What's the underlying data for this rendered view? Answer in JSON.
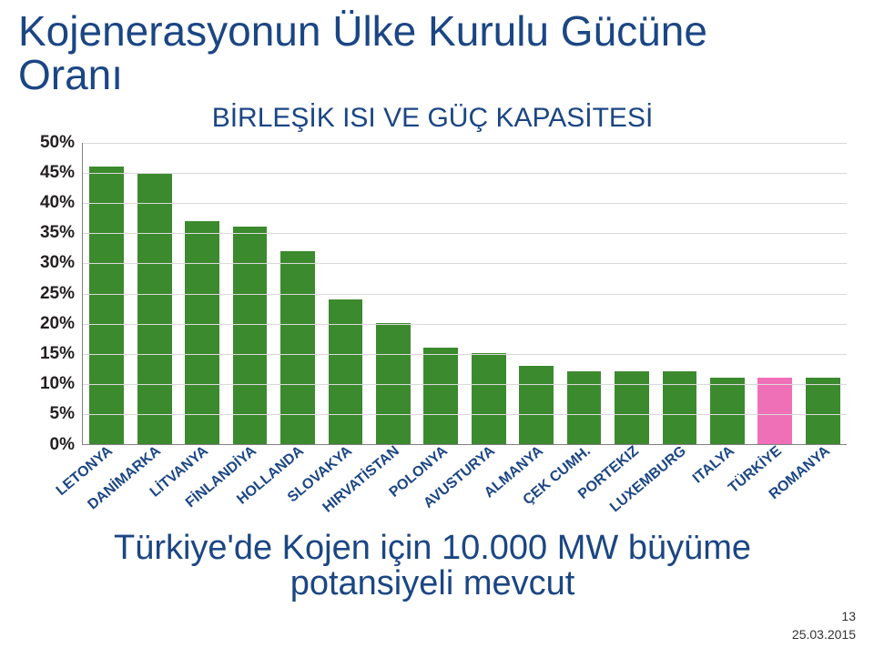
{
  "title_line1": "Kojenerasyonun Ülke Kurulu Gücüne",
  "title_line2": "Oranı",
  "chart": {
    "type": "bar",
    "title": "BİRLEŞİK ISI VE GÜÇ KAPASİTESİ",
    "title_color": "#1b4684",
    "ylim": [
      0,
      50
    ],
    "ytick_step": 5,
    "yticks": [
      "0%",
      "5%",
      "10%",
      "15%",
      "20%",
      "25%",
      "30%",
      "35%",
      "40%",
      "45%",
      "50%"
    ],
    "ytick_color": "#231f20",
    "ytick_fontsize": 19,
    "axis_color": "#808080",
    "grid_color": "#d9d9d9",
    "background_color": "#ffffff",
    "series_color": "#3c8a2e",
    "highlight_color": "#f070b8",
    "bar_width": 0.72,
    "xlabel_color": "#1b4684",
    "xlabel_fontsize": 16,
    "data": [
      {
        "label": "LETONYA",
        "value": 46,
        "highlight": false
      },
      {
        "label": "DANİMARKA",
        "value": 45,
        "highlight": false
      },
      {
        "label": "LİTVANYA",
        "value": 37,
        "highlight": false
      },
      {
        "label": "FİNLANDİYA",
        "value": 36,
        "highlight": false
      },
      {
        "label": "HOLLANDA",
        "value": 32,
        "highlight": false
      },
      {
        "label": "SLOVAKYA",
        "value": 24,
        "highlight": false
      },
      {
        "label": "HIRVATİSTAN",
        "value": 20,
        "highlight": false
      },
      {
        "label": "POLONYA",
        "value": 16,
        "highlight": false
      },
      {
        "label": "AVUSTURYA",
        "value": 15,
        "highlight": false
      },
      {
        "label": "ALMANYA",
        "value": 13,
        "highlight": false
      },
      {
        "label": "ÇEK CUMH.",
        "value": 12,
        "highlight": false
      },
      {
        "label": "PORTEKIZ",
        "value": 12,
        "highlight": false
      },
      {
        "label": "LUXEMBURG",
        "value": 12,
        "highlight": false
      },
      {
        "label": "ITALYA",
        "value": 11,
        "highlight": false
      },
      {
        "label": "TÜRKİYE",
        "value": 11,
        "highlight": true
      },
      {
        "label": "ROMANYA",
        "value": 11,
        "highlight": false
      }
    ]
  },
  "subtitle_line1": "Türkiye'de Kojen için 10.000 MW büyüme",
  "subtitle_line2": "potansiyeli mevcut",
  "title_color": "#1b4684",
  "subtitle_color": "#1b4684",
  "page_number": "13",
  "page_date": "25.03.2015"
}
